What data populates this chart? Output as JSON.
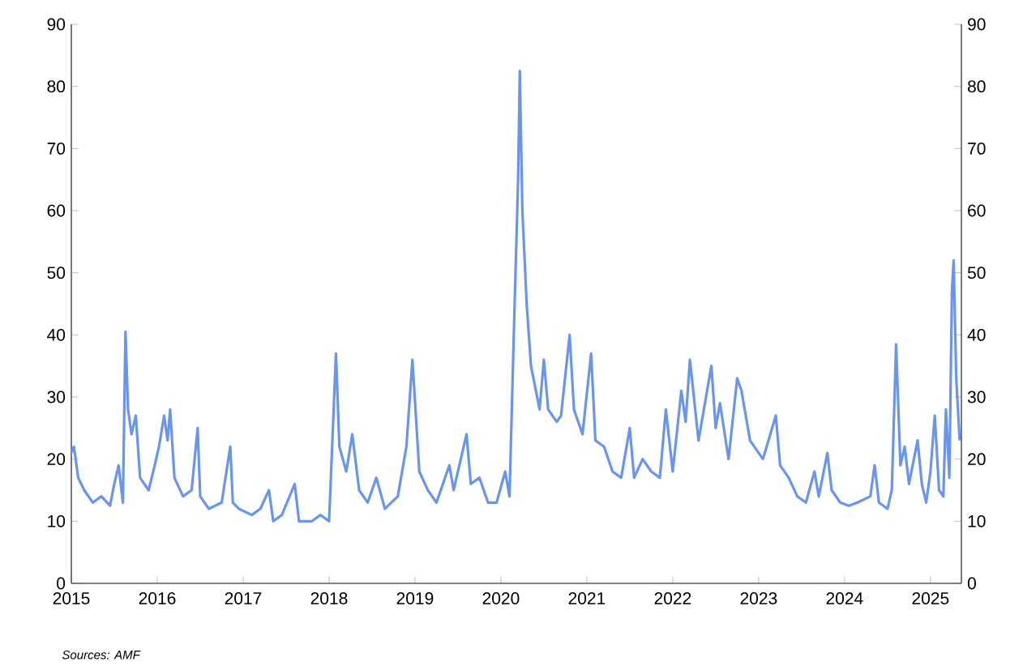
{
  "chart_data": {
    "type": "line",
    "color": "#6b94ec",
    "x": [
      2015.0,
      2015.03,
      2015.08,
      2015.15,
      2015.25,
      2015.35,
      2015.45,
      2015.5,
      2015.55,
      2015.6,
      2015.63,
      2015.66,
      2015.7,
      2015.75,
      2015.8,
      2015.9,
      2015.97,
      2016.02,
      2016.08,
      2016.12,
      2016.15,
      2016.2,
      2016.3,
      2016.4,
      2016.47,
      2016.5,
      2016.6,
      2016.75,
      2016.85,
      2016.88,
      2016.95,
      2017.1,
      2017.2,
      2017.3,
      2017.35,
      2017.45,
      2017.6,
      2017.65,
      2017.8,
      2017.9,
      2018.0,
      2018.08,
      2018.12,
      2018.2,
      2018.27,
      2018.35,
      2018.45,
      2018.55,
      2018.65,
      2018.8,
      2018.9,
      2018.97,
      2019.05,
      2019.15,
      2019.25,
      2019.35,
      2019.4,
      2019.45,
      2019.6,
      2019.65,
      2019.75,
      2019.85,
      2019.95,
      2020.05,
      2020.1,
      2020.15,
      2020.2,
      2020.22,
      2020.25,
      2020.3,
      2020.35,
      2020.45,
      2020.5,
      2020.55,
      2020.65,
      2020.7,
      2020.8,
      2020.85,
      2020.95,
      2021.05,
      2021.1,
      2021.2,
      2021.3,
      2021.4,
      2021.5,
      2021.55,
      2021.65,
      2021.75,
      2021.85,
      2021.92,
      2022.0,
      2022.1,
      2022.15,
      2022.2,
      2022.3,
      2022.45,
      2022.5,
      2022.55,
      2022.65,
      2022.75,
      2022.8,
      2022.9,
      2022.95,
      2023.05,
      2023.2,
      2023.25,
      2023.35,
      2023.45,
      2023.55,
      2023.65,
      2023.7,
      2023.8,
      2023.85,
      2023.95,
      2024.05,
      2024.15,
      2024.3,
      2024.35,
      2024.4,
      2024.5,
      2024.55,
      2024.6,
      2024.65,
      2024.7,
      2024.75,
      2024.85,
      2024.9,
      2024.95,
      2025.0,
      2025.05,
      2025.1,
      2025.15,
      2025.18,
      2025.22,
      2025.25,
      2025.27,
      2025.3,
      2025.34
    ],
    "values": [
      21,
      22,
      17,
      15,
      13,
      14,
      12.5,
      16,
      19,
      13,
      40.5,
      28,
      24,
      27,
      17,
      15,
      19,
      22,
      27,
      23,
      28,
      17,
      14,
      15,
      25,
      14,
      12,
      13,
      22,
      13,
      12,
      11,
      12,
      15,
      10,
      11,
      16,
      10,
      10,
      11,
      10,
      37,
      22,
      18,
      24,
      15,
      13,
      17,
      12,
      14,
      22,
      36,
      18,
      15,
      13,
      17,
      19,
      15,
      24,
      16,
      17,
      13,
      13,
      18,
      14,
      40,
      65,
      82.5,
      60,
      45,
      35,
      28,
      36,
      28,
      26,
      27,
      40,
      28,
      24,
      37,
      23,
      22,
      18,
      17,
      25,
      17,
      20,
      18,
      17,
      28,
      18,
      31,
      26,
      36,
      23,
      35,
      25,
      29,
      20,
      33,
      31,
      23,
      22,
      20,
      27,
      19,
      17,
      14,
      13,
      18,
      14,
      21,
      15,
      13,
      12.5,
      13,
      14,
      19,
      13,
      12,
      15,
      38.5,
      19,
      22,
      16,
      23,
      16,
      13,
      18,
      27,
      15,
      14,
      28,
      17,
      47,
      52,
      33,
      23
    ],
    "xlim": [
      2015,
      2025.36
    ],
    "xticks": [
      2015,
      2016,
      2017,
      2018,
      2019,
      2020,
      2021,
      2022,
      2023,
      2024,
      2025
    ],
    "ylim": [
      0,
      90
    ],
    "yticks": [
      0,
      10,
      20,
      30,
      40,
      50,
      60,
      70,
      80,
      90
    ],
    "y2lim": [
      0,
      90
    ],
    "y2ticks": [
      0,
      10,
      20,
      30,
      40,
      50,
      60,
      70,
      80,
      90
    ],
    "grid": false,
    "marker": "none",
    "line_style": "solid",
    "annotations": [
      "Sources: AMF"
    ]
  }
}
